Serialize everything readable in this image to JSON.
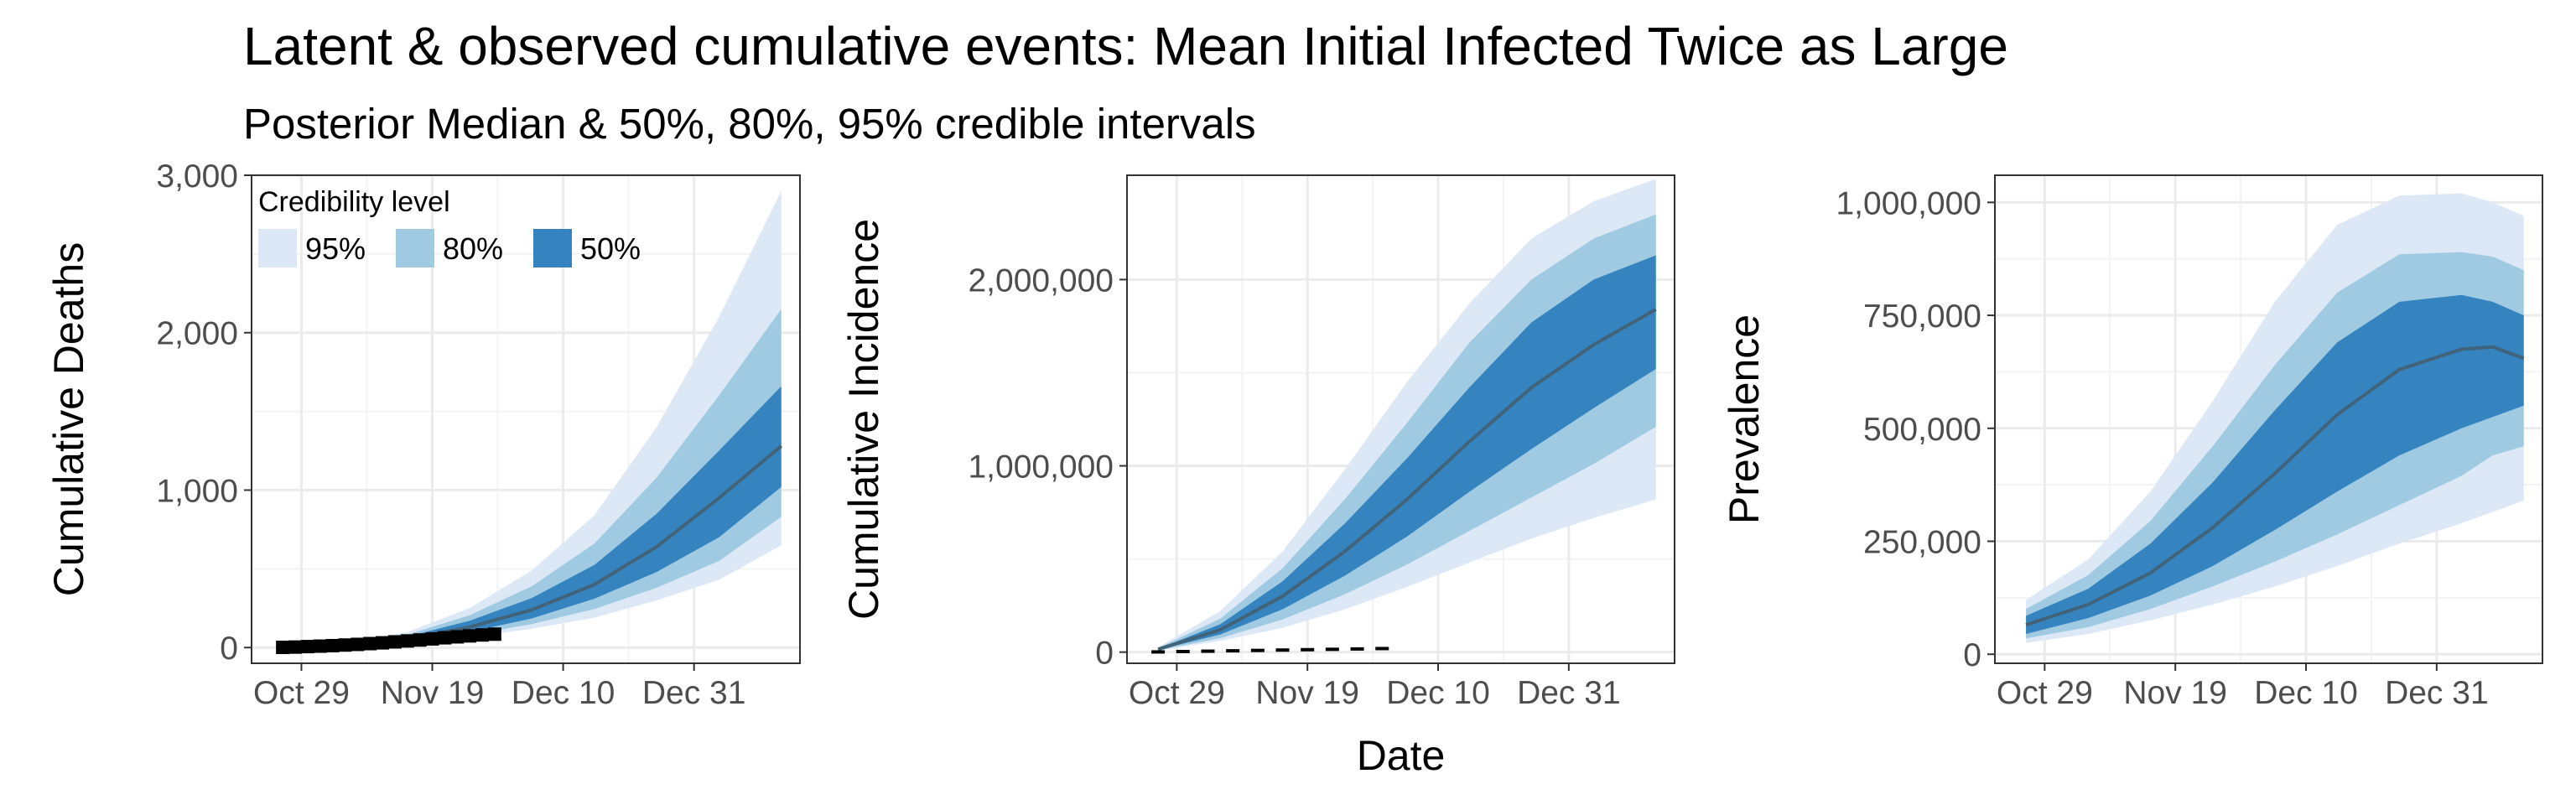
{
  "title": "Latent & observed cumulative events: Mean Initial Infected Twice as Large",
  "subtitle": "Posterior Median & 50%, 80%, 95% credible intervals",
  "xlabel": "Date",
  "colors": {
    "ci95": "#dce8f5",
    "ci80": "#9fcae1",
    "ci50": "#3584c0",
    "median": "#41637a",
    "observed": "#000000",
    "grid": "#ebebeb"
  },
  "legend": {
    "title": "Credibility level",
    "items": [
      "95%",
      "80%",
      "50%"
    ]
  },
  "chart_data": [
    {
      "type": "area",
      "ylabel": "Cumulative Deaths",
      "x_tick_labels": [
        "Oct 29",
        "Nov 19",
        "Dec 10",
        "Dec 31"
      ],
      "x_tick_days": [
        0,
        21,
        42,
        63
      ],
      "x_range": [
        -8,
        80
      ],
      "ylim": [
        -100,
        3000
      ],
      "y_ticks": [
        0,
        1000,
        2000,
        3000
      ],
      "y_tick_labels": [
        "0",
        "1,000",
        "2,000",
        "3,000"
      ],
      "days": [
        -3,
        7,
        17,
        27,
        37,
        47,
        57,
        67,
        77
      ],
      "median": [
        0,
        15,
        55,
        130,
        240,
        400,
        640,
        950,
        1280
      ],
      "ci50": [
        [
          0,
          0
        ],
        [
          12,
          19
        ],
        [
          42,
          70
        ],
        [
          100,
          170
        ],
        [
          185,
          315
        ],
        [
          310,
          525
        ],
        [
          480,
          850
        ],
        [
          700,
          1250
        ],
        [
          1020,
          1660
        ]
      ],
      "ci80": [
        [
          0,
          0
        ],
        [
          10,
          22
        ],
        [
          35,
          82
        ],
        [
          80,
          205
        ],
        [
          150,
          390
        ],
        [
          245,
          660
        ],
        [
          380,
          1080
        ],
        [
          550,
          1600
        ],
        [
          830,
          2150
        ]
      ],
      "ci95": [
        [
          0,
          0
        ],
        [
          8,
          26
        ],
        [
          28,
          98
        ],
        [
          65,
          250
        ],
        [
          120,
          490
        ],
        [
          190,
          840
        ],
        [
          300,
          1400
        ],
        [
          430,
          2100
        ],
        [
          650,
          2900
        ]
      ],
      "observed": {
        "days": [
          -3,
          -1,
          1,
          3,
          5,
          7,
          9,
          11,
          13,
          15,
          17,
          19,
          21,
          23,
          25,
          27,
          29,
          31
        ],
        "values": [
          1,
          3,
          6,
          9,
          12,
          16,
          20,
          25,
          30,
          36,
          42,
          48,
          55,
          62,
          68,
          74,
          80,
          85
        ]
      },
      "legend": true
    },
    {
      "type": "area",
      "ylabel": "Cumulative Incidence",
      "x_tick_labels": [
        "Oct 29",
        "Nov 19",
        "Dec 10",
        "Dec 31"
      ],
      "x_tick_days": [
        0,
        21,
        42,
        63
      ],
      "x_range": [
        -8,
        80
      ],
      "ylim": [
        -60000,
        2560000
      ],
      "y_ticks": [
        0,
        1000000,
        2000000
      ],
      "y_tick_labels": [
        "0",
        "1,000,000",
        "2,000,000"
      ],
      "days": [
        -3,
        7,
        17,
        27,
        37,
        47,
        57,
        67,
        77
      ],
      "median": [
        15000,
        120000,
        300000,
        540000,
        820000,
        1130000,
        1420000,
        1650000,
        1840000
      ],
      "ci50": [
        [
          12000,
          18000
        ],
        [
          95000,
          150000
        ],
        [
          230000,
          380000
        ],
        [
          410000,
          690000
        ],
        [
          620000,
          1040000
        ],
        [
          860000,
          1420000
        ],
        [
          1090000,
          1770000
        ],
        [
          1310000,
          2000000
        ],
        [
          1520000,
          2130000
        ]
      ],
      "ci80": [
        [
          10000,
          22000
        ],
        [
          75000,
          180000
        ],
        [
          175000,
          450000
        ],
        [
          310000,
          820000
        ],
        [
          470000,
          1230000
        ],
        [
          650000,
          1660000
        ],
        [
          830000,
          2000000
        ],
        [
          1010000,
          2220000
        ],
        [
          1210000,
          2350000
        ]
      ],
      "ci95": [
        [
          8000,
          27000
        ],
        [
          60000,
          220000
        ],
        [
          130000,
          540000
        ],
        [
          230000,
          980000
        ],
        [
          350000,
          1450000
        ],
        [
          480000,
          1870000
        ],
        [
          610000,
          2220000
        ],
        [
          720000,
          2420000
        ],
        [
          820000,
          2540000
        ]
      ],
      "observed": {
        "days": [
          -3,
          1,
          5,
          9,
          13,
          17,
          21,
          25,
          29,
          33
        ],
        "values": [
          1000,
          3000,
          5000,
          7000,
          9000,
          11000,
          13000,
          15000,
          17000,
          19000
        ]
      },
      "legend": false
    },
    {
      "type": "area",
      "ylabel": "Prevalence",
      "x_tick_labels": [
        "Oct 29",
        "Nov 19",
        "Dec 10",
        "Dec 31"
      ],
      "x_tick_days": [
        0,
        21,
        42,
        63
      ],
      "x_range": [
        -8,
        80
      ],
      "ylim": [
        -20000,
        1060000
      ],
      "y_ticks": [
        0,
        250000,
        500000,
        750000,
        1000000
      ],
      "y_tick_labels": [
        "0",
        "250,000",
        "500,000",
        "750,000",
        "1,000,000"
      ],
      "days": [
        -3,
        7,
        17,
        27,
        37,
        47,
        57,
        67,
        72,
        77
      ],
      "median": [
        65000,
        110000,
        180000,
        280000,
        400000,
        530000,
        630000,
        675000,
        680000,
        655000
      ],
      "ci50": [
        [
          45000,
          85000
        ],
        [
          80000,
          145000
        ],
        [
          130000,
          245000
        ],
        [
          195000,
          380000
        ],
        [
          275000,
          540000
        ],
        [
          360000,
          690000
        ],
        [
          440000,
          780000
        ],
        [
          500000,
          795000
        ],
        [
          525000,
          780000
        ],
        [
          550000,
          750000
        ]
      ],
      "ci80": [
        [
          35000,
          100000
        ],
        [
          60000,
          175000
        ],
        [
          100000,
          295000
        ],
        [
          150000,
          460000
        ],
        [
          205000,
          640000
        ],
        [
          265000,
          800000
        ],
        [
          330000,
          885000
        ],
        [
          395000,
          890000
        ],
        [
          440000,
          880000
        ],
        [
          460000,
          850000
        ]
      ],
      "ci95": [
        [
          25000,
          120000
        ],
        [
          45000,
          210000
        ],
        [
          75000,
          360000
        ],
        [
          110000,
          560000
        ],
        [
          150000,
          780000
        ],
        [
          195000,
          950000
        ],
        [
          245000,
          1015000
        ],
        [
          290000,
          1020000
        ],
        [
          315000,
          1000000
        ],
        [
          340000,
          970000
        ]
      ],
      "observed": null,
      "legend": false
    }
  ]
}
